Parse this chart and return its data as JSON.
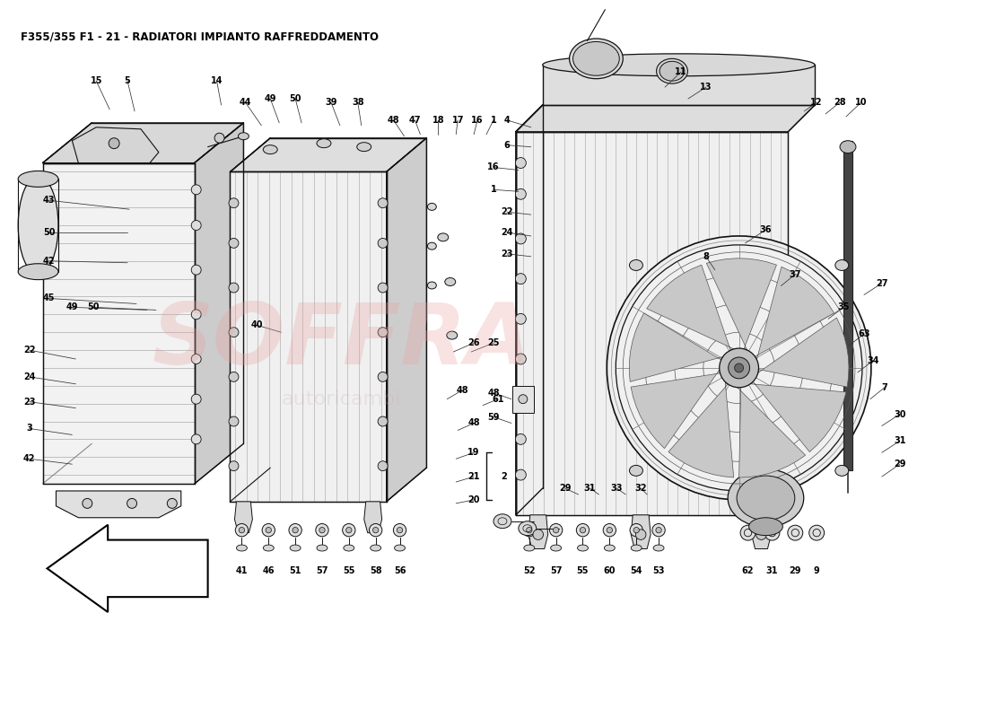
{
  "title": "F355/355 F1 - 21 - RADIATORI IMPIANTO RAFFREDDAMENTO",
  "bg_color": "#FFFFFF",
  "watermark_text": "SOFFRA",
  "watermark_color": "#E8A0A0",
  "watermark_alpha": 0.3,
  "fig_width": 11.0,
  "fig_height": 8.0,
  "dpi": 100,
  "line_color": "#111111",
  "gray_fill": "#E8E8E8",
  "dark_gray": "#AAAAAA",
  "mid_gray": "#CCCCCC"
}
